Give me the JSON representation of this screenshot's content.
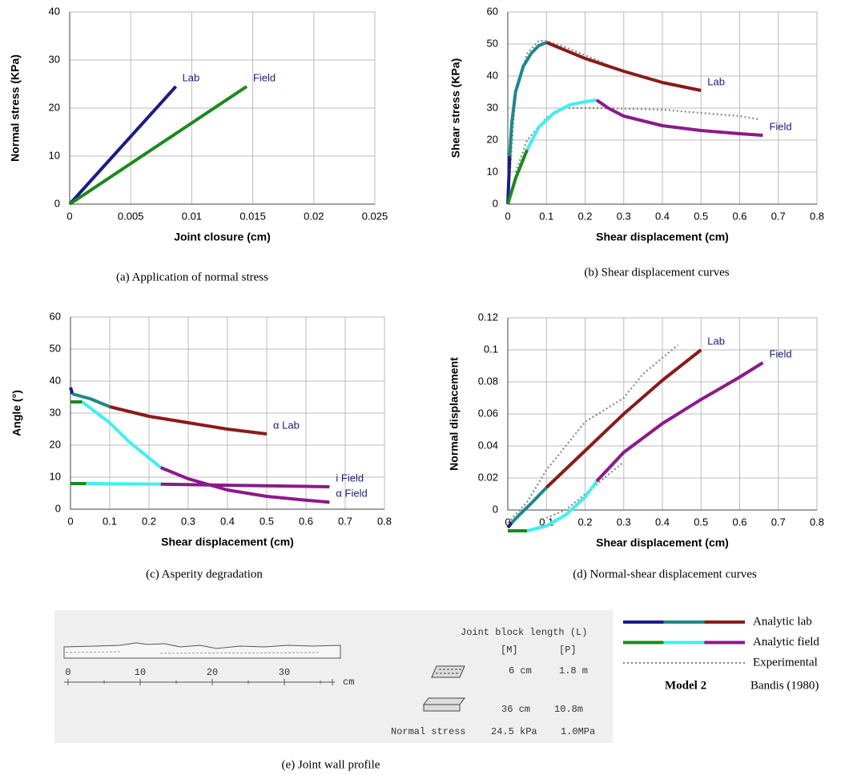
{
  "chart_data": [
    {
      "type": "line",
      "caption": "(a) Application of normal stress",
      "xlabel": "Joint closure  (cm)",
      "ylabel": "Normal stress (KPa)",
      "xlim": [
        0,
        0.025
      ],
      "xticks": [
        0,
        0.005,
        0.01,
        0.015,
        0.02,
        0.025
      ],
      "ylim": [
        0,
        40
      ],
      "yticks": [
        0,
        10,
        20,
        30,
        40
      ],
      "grid": true,
      "series": [
        {
          "name": "Lab",
          "segments": [
            {
              "color": "#1a1a8c",
              "x": [
                0,
                0.0087
              ],
              "values": [
                0,
                24.5
              ]
            }
          ]
        },
        {
          "name": "Field",
          "segments": [
            {
              "color": "#1a8a1a",
              "x": [
                0,
                0.0145
              ],
              "values": [
                0,
                24.5
              ]
            }
          ]
        }
      ]
    },
    {
      "type": "line",
      "caption": "(b) Shear displacement curves",
      "xlabel": "Shear displacement (cm)",
      "ylabel": "Shear stress (KPa)",
      "xlim": [
        0,
        0.8
      ],
      "xticks": [
        0,
        0.1,
        0.2,
        0.3,
        0.4,
        0.5,
        0.6,
        0.7,
        0.8
      ],
      "ylim": [
        0,
        60
      ],
      "yticks": [
        0,
        10,
        20,
        30,
        40,
        50,
        60
      ],
      "grid": true,
      "series": [
        {
          "dotted": true,
          "segments": [
            {
              "color": "#888888",
              "x": [
                0,
                0.02,
                0.05,
                0.08,
                0.1,
                0.15,
                0.25
              ],
              "values": [
                0,
                35,
                47,
                51,
                51,
                49,
                44
              ]
            }
          ]
        },
        {
          "dotted": true,
          "segments": [
            {
              "color": "#888888",
              "x": [
                0.02,
                0.05,
                0.1,
                0.15,
                0.25,
                0.4,
                0.5,
                0.6,
                0.65
              ],
              "values": [
                10,
                20,
                27,
                30,
                30,
                29.5,
                28.5,
                27.5,
                26.5
              ]
            }
          ]
        },
        {
          "name": "Lab",
          "segments": [
            {
              "color": "#1a1a8c",
              "x": [
                0,
                0.005
              ],
              "values": [
                0,
                15
              ]
            },
            {
              "color": "#1a8a8a",
              "x": [
                0.005,
                0.01,
                0.02,
                0.04,
                0.06,
                0.08,
                0.1
              ],
              "values": [
                15,
                25,
                35,
                43,
                47,
                49.5,
                50.5
              ]
            },
            {
              "color": "#8b1a1a",
              "x": [
                0.1,
                0.15,
                0.2,
                0.3,
                0.4,
                0.5
              ],
              "values": [
                50.5,
                48,
                45.5,
                41.5,
                38,
                35.5
              ]
            }
          ]
        },
        {
          "name": "Field",
          "segments": [
            {
              "color": "#1a8a1a",
              "x": [
                0,
                0.02,
                0.04,
                0.05
              ],
              "values": [
                0,
                8,
                14,
                17
              ]
            },
            {
              "color": "#3ef0f0",
              "x": [
                0.05,
                0.08,
                0.12,
                0.16,
                0.2,
                0.23
              ],
              "values": [
                17,
                24,
                28.5,
                31,
                32,
                32.5
              ]
            },
            {
              "color": "#8b1a8b",
              "x": [
                0.23,
                0.26,
                0.3,
                0.4,
                0.5,
                0.6,
                0.66
              ],
              "values": [
                32.5,
                30,
                27.5,
                24.5,
                23,
                22,
                21.5
              ]
            }
          ]
        }
      ]
    },
    {
      "type": "line",
      "caption": "(c) Asperity degradation",
      "xlabel": "Shear displacement (cm)",
      "ylabel": "Angle (°)",
      "xlim": [
        0,
        0.8
      ],
      "xticks": [
        0,
        0.1,
        0.2,
        0.3,
        0.4,
        0.5,
        0.6,
        0.7,
        0.8
      ],
      "ylim": [
        0,
        60
      ],
      "yticks": [
        0,
        10,
        20,
        30,
        40,
        50,
        60
      ],
      "grid": true,
      "series": [
        {
          "name": "α Lab",
          "segments": [
            {
              "color": "#1a1a8c",
              "x": [
                0,
                0.005
              ],
              "values": [
                38,
                36
              ]
            },
            {
              "color": "#1a8a8a",
              "x": [
                0.005,
                0.05,
                0.1
              ],
              "values": [
                36,
                34.5,
                32
              ]
            },
            {
              "color": "#8b1a1a",
              "x": [
                0.1,
                0.2,
                0.3,
                0.4,
                0.5
              ],
              "values": [
                32,
                29,
                27,
                25,
                23.5
              ]
            }
          ]
        },
        {
          "name": "i Field",
          "segments": [
            {
              "color": "#1a8a1a",
              "x": [
                0,
                0.04
              ],
              "values": [
                8,
                8
              ]
            },
            {
              "color": "#3ef0f0",
              "x": [
                0.04,
                0.23
              ],
              "values": [
                8,
                7.8
              ]
            },
            {
              "color": "#8b1a8b",
              "x": [
                0.23,
                0.66
              ],
              "values": [
                7.8,
                7
              ]
            }
          ]
        },
        {
          "name": "α Field",
          "segments": [
            {
              "color": "#1a8a1a",
              "x": [
                0,
                0.03
              ],
              "values": [
                33.5,
                33.5
              ]
            },
            {
              "color": "#3ef0f0",
              "x": [
                0.03,
                0.1,
                0.15,
                0.2,
                0.23
              ],
              "values": [
                33.5,
                27,
                21,
                16,
                13
              ]
            },
            {
              "color": "#8b1a8b",
              "x": [
                0.23,
                0.3,
                0.4,
                0.5,
                0.6,
                0.66
              ],
              "values": [
                13,
                9.5,
                6,
                4,
                2.8,
                2.2
              ]
            }
          ]
        }
      ]
    },
    {
      "type": "line",
      "caption": "(d) Normal-shear displacement curves",
      "xlabel": "Shear displacement (cm)",
      "ylabel": "Normal displacement",
      "xlim": [
        0,
        0.8
      ],
      "xticks": [
        0,
        0.1,
        0.2,
        0.3,
        0.4,
        0.5,
        0.6,
        0.7,
        0.8
      ],
      "ylim": [
        0,
        0.12
      ],
      "yticks": [
        0,
        0.02,
        0.04,
        0.06,
        0.08,
        0.1,
        0.12
      ],
      "grid": true,
      "series": [
        {
          "dotted": true,
          "segments": [
            {
              "color": "#888888",
              "x": [
                0,
                0.05,
                0.1,
                0.15,
                0.2,
                0.3,
                0.35,
                0.44
              ],
              "values": [
                -0.008,
                0.005,
                0.025,
                0.04,
                0.055,
                0.07,
                0.085,
                0.103
              ]
            }
          ]
        },
        {
          "dotted": true,
          "segments": [
            {
              "color": "#888888",
              "x": [
                0.1,
                0.15,
                0.2,
                0.3
              ],
              "values": [
                -0.005,
                0,
                0.01,
                0.03
              ]
            }
          ]
        },
        {
          "name": "Lab",
          "segments": [
            {
              "color": "#1a1a8c",
              "x": [
                0,
                0.01
              ],
              "values": [
                -0.011,
                -0.008
              ]
            },
            {
              "color": "#1a8a8a",
              "x": [
                0.01,
                0.03,
                0.06,
                0.1
              ],
              "values": [
                -0.008,
                -0.003,
                0.004,
                0.014
              ]
            },
            {
              "color": "#8b1a1a",
              "x": [
                0.1,
                0.2,
                0.3,
                0.4,
                0.5
              ],
              "values": [
                0.014,
                0.037,
                0.06,
                0.081,
                0.1
              ]
            }
          ]
        },
        {
          "name": "Field",
          "segments": [
            {
              "color": "#1a8a1a",
              "x": [
                0,
                0.05
              ],
              "values": [
                -0.013,
                -0.013
              ]
            },
            {
              "color": "#3ef0f0",
              "x": [
                0.05,
                0.1,
                0.15,
                0.2,
                0.23
              ],
              "values": [
                -0.013,
                -0.01,
                -0.003,
                0.008,
                0.018
              ]
            },
            {
              "color": "#8b1a8b",
              "x": [
                0.23,
                0.3,
                0.4,
                0.5,
                0.6,
                0.66
              ],
              "values": [
                0.018,
                0.036,
                0.054,
                0.069,
                0.083,
                0.092
              ]
            }
          ]
        }
      ]
    }
  ],
  "profile": {
    "caption": "(e) Joint wall profile",
    "scale": [
      "0",
      "10",
      "20",
      "30",
      "cm"
    ],
    "block_title": "Joint block length (L)",
    "m_head": "[M]",
    "p_head": "[P]",
    "small_m": "6 cm",
    "small_p": "1.8 m",
    "large_m": "36 cm",
    "large_p": "10.8m",
    "stress_label": "Normal stress",
    "stress_m": "24.5 kPa",
    "stress_p": "1.0MPa"
  },
  "legend": {
    "entries": [
      {
        "label": "Analytic lab",
        "colors": [
          "#1a1a8c",
          "#1a8a8a",
          "#8b1a1a"
        ]
      },
      {
        "label": "Analytic field",
        "colors": [
          "#1a8a1a",
          "#3ef0f0",
          "#8b1a8b"
        ]
      },
      {
        "label": "Experimental",
        "colors": [
          "#888888"
        ],
        "dotted": true
      }
    ],
    "model": "Model 2",
    "source": "Bandis (1980)"
  }
}
